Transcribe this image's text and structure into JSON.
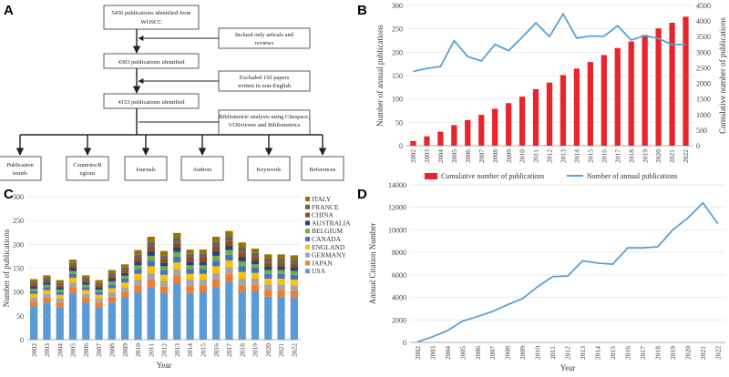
{
  "panel_labels": {
    "a": "A",
    "b": "B",
    "c": "C",
    "d": "D"
  },
  "flowchart": {
    "boxes": [
      "5450 publications identified from WOSCC",
      "4303 publications identified",
      "4153 publications identified"
    ],
    "side_boxes": [
      "Inclued only articals and reviews",
      "Excluded 150 papers written in non-English",
      "Bibliometric analysis using Citespace, VOSviewer and Bibliometrics"
    ],
    "outputs": [
      "Publication trends",
      "Countries/Regions",
      "Journals",
      "Authors",
      "Keywords",
      "References"
    ]
  },
  "chart_data": [
    {
      "panel": "B",
      "type": "bar",
      "categories": [
        "2002",
        "2003",
        "2004",
        "2005",
        "2006",
        "2007",
        "2008",
        "2009",
        "2010",
        "2011",
        "2012",
        "2013",
        "2014",
        "2015",
        "2016",
        "2017",
        "2018",
        "2019",
        "2020",
        "2021",
        "2022"
      ],
      "series": [
        {
          "name": "Cumulative number of publications",
          "type": "bar",
          "axis": "left",
          "color": "#e8252a",
          "values": [
            10,
            20,
            30,
            44,
            55,
            66,
            79,
            91,
            105,
            121,
            135,
            151,
            165,
            179,
            194,
            209,
            223,
            237,
            251,
            263,
            276
          ]
        },
        {
          "name": "Number of annual publications",
          "type": "line",
          "axis": "right",
          "color": "#5aa0d2",
          "values": [
            2380,
            2480,
            2540,
            3370,
            2860,
            2720,
            3250,
            3050,
            3480,
            3940,
            3500,
            4230,
            3450,
            3520,
            3510,
            3850,
            3390,
            3530,
            3440,
            3240,
            3250
          ]
        }
      ],
      "ylabel": "Number of annual publications",
      "ylabel_right": "Cumulative number of publications",
      "ylim": [
        0,
        300
      ],
      "ylim_right": [
        0,
        4500
      ],
      "yticks": [
        "0",
        "50",
        "100",
        "150",
        "200",
        "250",
        "300"
      ],
      "yticks_right": [
        "0",
        "500",
        "1000",
        "1500",
        "2000",
        "2500",
        "3000",
        "3500",
        "4000",
        "4500"
      ]
    },
    {
      "panel": "C",
      "type": "bar",
      "stacked": true,
      "categories": [
        "2002",
        "2003",
        "2004",
        "2005",
        "2006",
        "2007",
        "2008",
        "2009",
        "2010",
        "2011",
        "2012",
        "2013",
        "2014",
        "2015",
        "2016",
        "2017",
        "2018",
        "2019",
        "2020",
        "2021",
        "2022"
      ],
      "series": [
        {
          "name": "USA",
          "color": "#5b9bd5",
          "values": [
            70,
            78,
            68,
            98,
            78,
            68,
            78,
            88,
            100,
            110,
            98,
            118,
            98,
            100,
            110,
            122,
            100,
            102,
            90,
            90,
            88
          ]
        },
        {
          "name": "JAPAN",
          "color": "#ed7d31",
          "values": [
            10,
            10,
            10,
            12,
            10,
            10,
            12,
            12,
            14,
            16,
            14,
            16,
            14,
            14,
            16,
            16,
            14,
            14,
            14,
            14,
            14
          ]
        },
        {
          "name": "GERMANY",
          "color": "#a5a5a5",
          "values": [
            8,
            8,
            8,
            10,
            8,
            8,
            10,
            10,
            12,
            14,
            12,
            14,
            14,
            12,
            14,
            14,
            14,
            12,
            12,
            12,
            12
          ]
        },
        {
          "name": "ENGLAND",
          "color": "#ffc000",
          "values": [
            8,
            8,
            8,
            10,
            8,
            8,
            8,
            10,
            12,
            14,
            12,
            14,
            12,
            12,
            14,
            14,
            14,
            12,
            12,
            12,
            12
          ]
        },
        {
          "name": "CANADA",
          "color": "#4472c4",
          "values": [
            6,
            6,
            6,
            8,
            6,
            6,
            8,
            8,
            10,
            12,
            10,
            12,
            10,
            10,
            12,
            12,
            12,
            10,
            10,
            10,
            10
          ]
        },
        {
          "name": "BELGIUM",
          "color": "#70ad47",
          "values": [
            5,
            5,
            5,
            6,
            5,
            5,
            6,
            6,
            8,
            10,
            8,
            10,
            8,
            8,
            10,
            10,
            10,
            8,
            8,
            8,
            8
          ]
        },
        {
          "name": "AUSTRALIA",
          "color": "#264478",
          "values": [
            5,
            5,
            5,
            6,
            5,
            5,
            6,
            6,
            8,
            10,
            8,
            10,
            8,
            8,
            10,
            10,
            10,
            8,
            8,
            8,
            8
          ]
        },
        {
          "name": "CHINA",
          "color": "#9e480e",
          "values": [
            4,
            4,
            4,
            5,
            4,
            4,
            5,
            5,
            7,
            9,
            7,
            9,
            8,
            8,
            9,
            9,
            9,
            8,
            8,
            8,
            8
          ]
        },
        {
          "name": "FRANCE",
          "color": "#636363",
          "values": [
            5,
            5,
            5,
            6,
            5,
            5,
            6,
            6,
            8,
            10,
            8,
            10,
            8,
            8,
            10,
            10,
            10,
            8,
            8,
            8,
            8
          ]
        },
        {
          "name": "ITALY",
          "color": "#997300",
          "values": [
            6,
            6,
            6,
            7,
            6,
            6,
            7,
            7,
            9,
            11,
            9,
            11,
            9,
            9,
            11,
            11,
            11,
            9,
            9,
            9,
            9
          ]
        }
      ],
      "xlabel": "Year",
      "ylabel": "Number of publications",
      "ylim": [
        0,
        300
      ],
      "yticks": [
        "0",
        "50",
        "100",
        "150",
        "200",
        "250",
        "300"
      ]
    },
    {
      "panel": "D",
      "type": "line",
      "categories": [
        "2002",
        "2003",
        "2004",
        "2005",
        "2006",
        "2007",
        "2008",
        "2009",
        "2010",
        "2011",
        "2012",
        "2013",
        "2014",
        "2015",
        "2016",
        "2017",
        "2018",
        "2019",
        "2020",
        "2021",
        "2022"
      ],
      "series": [
        {
          "name": "Annual Citation Number",
          "color": "#5aa0d2",
          "values": [
            50,
            500,
            1050,
            1900,
            2300,
            2750,
            3350,
            3900,
            4950,
            5850,
            5900,
            7250,
            7050,
            6950,
            8400,
            8400,
            8500,
            10000,
            11050,
            12400,
            10550
          ]
        }
      ],
      "xlabel": "Year",
      "ylabel": "Annual Citation Number",
      "ylim": [
        0,
        14000
      ],
      "yticks": [
        "0",
        "2000",
        "4000",
        "6000",
        "8000",
        "10000",
        "12000",
        "14000"
      ]
    }
  ]
}
